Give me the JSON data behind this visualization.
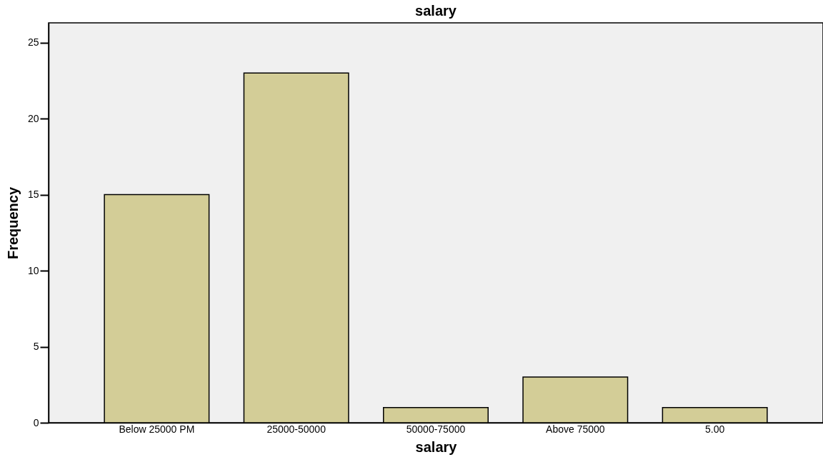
{
  "chart_data": {
    "type": "bar",
    "title": "salary",
    "xlabel": "salary",
    "ylabel": "Frequency",
    "categories": [
      "Below  25000 PM",
      "25000-50000",
      "50000-75000",
      "Above 75000",
      "5.00"
    ],
    "values": [
      15,
      23,
      1,
      3,
      1
    ],
    "color": "#d3cd97",
    "ylim": [
      0,
      26.3
    ],
    "yticks": [
      0,
      5,
      10,
      15,
      20,
      25
    ],
    "grid": false
  }
}
